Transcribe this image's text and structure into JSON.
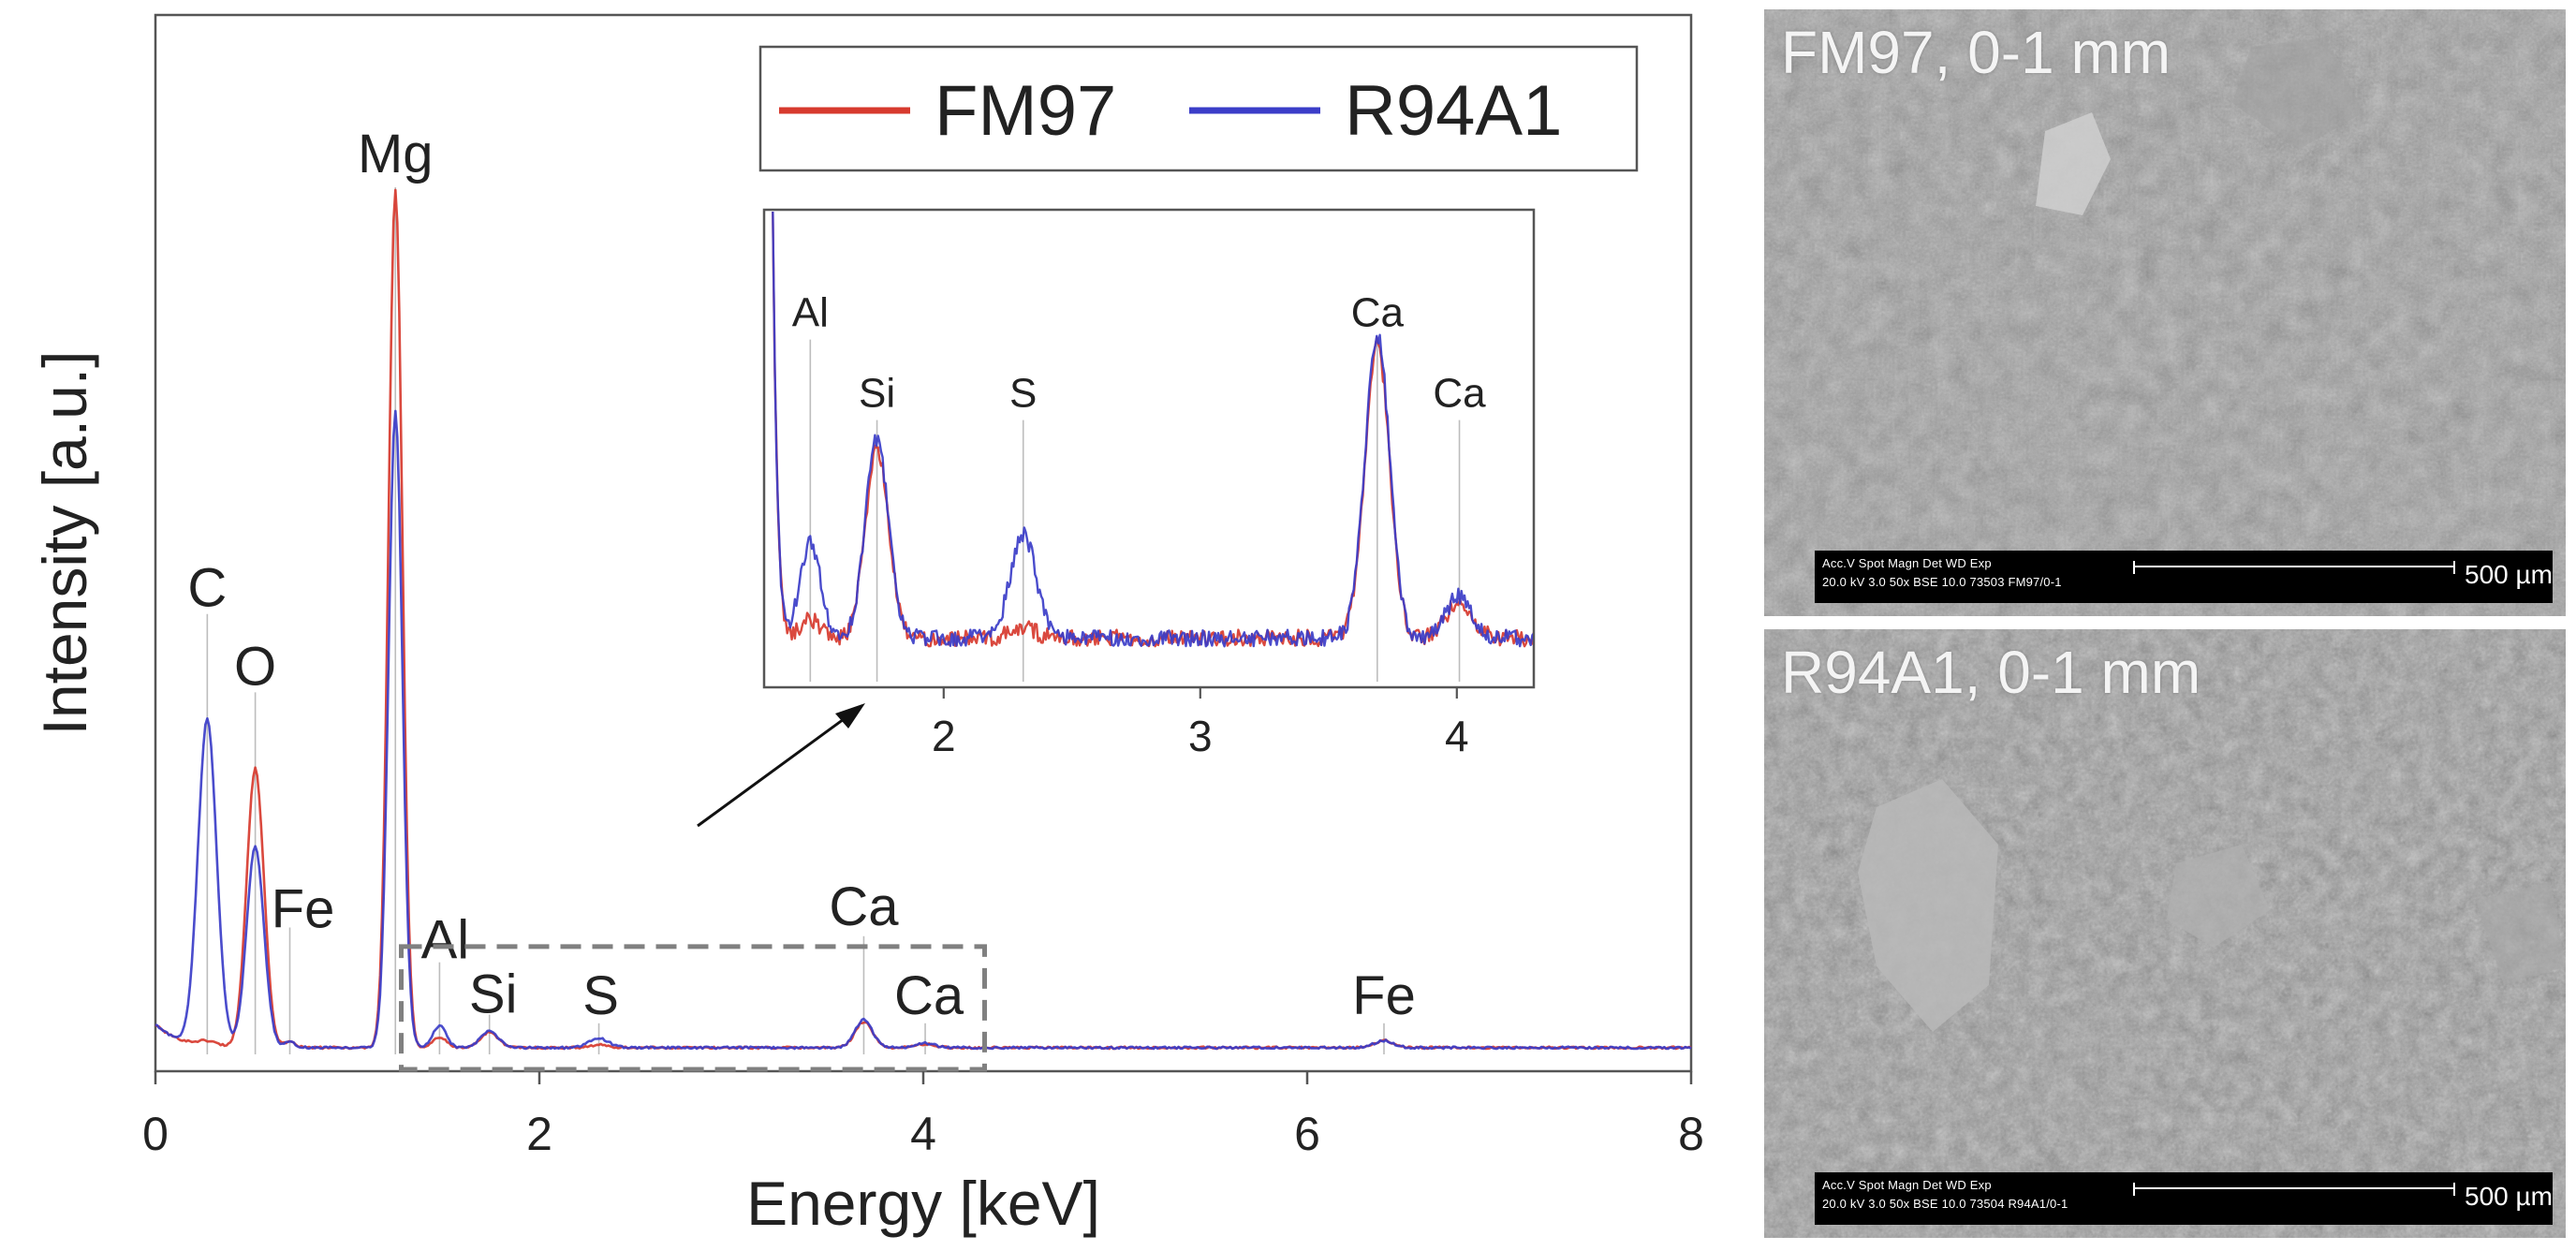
{
  "chart_data": {
    "type": "line",
    "xlabel": "Energy [keV]",
    "ylabel": "Intensity [a.u.]",
    "xlim": [
      0,
      8
    ],
    "ylim": [
      0,
      1
    ],
    "xticks": [
      0,
      2,
      4,
      6,
      8
    ],
    "grid": false,
    "legend": {
      "position": "top-right",
      "entries": [
        "FM97",
        "R94A1"
      ]
    },
    "series": [
      {
        "name": "FM97",
        "color": "#d73a2e",
        "peaks": [
          {
            "center": 0.27,
            "height": 0.005,
            "width": 0.05
          },
          {
            "center": 0.52,
            "height": 0.32,
            "width": 0.045
          },
          {
            "center": 0.7,
            "height": 0.006,
            "width": 0.03
          },
          {
            "center": 1.25,
            "height": 0.985,
            "width": 0.036
          },
          {
            "center": 1.48,
            "height": 0.012,
            "width": 0.035
          },
          {
            "center": 1.74,
            "height": 0.018,
            "width": 0.045
          },
          {
            "center": 2.31,
            "height": 0.003,
            "width": 0.05
          },
          {
            "center": 3.69,
            "height": 0.03,
            "width": 0.045
          },
          {
            "center": 4.01,
            "height": 0.004,
            "width": 0.05
          },
          {
            "center": 6.4,
            "height": 0.008,
            "width": 0.05
          }
        ]
      },
      {
        "name": "R94A1",
        "color": "#3b3dc8",
        "peaks": [
          {
            "center": 0.27,
            "height": 0.375,
            "width": 0.048
          },
          {
            "center": 0.52,
            "height": 0.23,
            "width": 0.045
          },
          {
            "center": 0.7,
            "height": 0.006,
            "width": 0.03
          },
          {
            "center": 1.25,
            "height": 0.73,
            "width": 0.036
          },
          {
            "center": 1.48,
            "height": 0.025,
            "width": 0.035
          },
          {
            "center": 1.74,
            "height": 0.019,
            "width": 0.045
          },
          {
            "center": 2.31,
            "height": 0.011,
            "width": 0.05
          },
          {
            "center": 3.69,
            "height": 0.032,
            "width": 0.045
          },
          {
            "center": 4.01,
            "height": 0.005,
            "width": 0.05
          },
          {
            "center": 6.4,
            "height": 0.008,
            "width": 0.05
          }
        ]
      }
    ],
    "element_labels": [
      {
        "text": "C",
        "energy": 0.27,
        "line_top": 0.51
      },
      {
        "text": "O",
        "energy": 0.52,
        "line_top": 0.42
      },
      {
        "text": "Fe",
        "energy": 0.7,
        "line_top": 0.15
      },
      {
        "text": "Mg",
        "energy": 1.25,
        "line_top": 1.0
      },
      {
        "text": "Al",
        "energy": 1.48,
        "line_top": 0.11
      },
      {
        "text": "Si",
        "energy": 1.74,
        "line_top": 0.05
      },
      {
        "text": "S",
        "energy": 2.31,
        "line_top": 0.04
      },
      {
        "text": "Ca",
        "energy": 3.69,
        "line_top": 0.14
      },
      {
        "text": "Ca",
        "energy": 4.01,
        "line_top": 0.04
      },
      {
        "text": "Fe",
        "energy": 6.4,
        "line_top": 0.04
      }
    ],
    "zoom_region": {
      "xlim": [
        1.3,
        4.3
      ],
      "ylim": [
        0,
        0.27
      ]
    },
    "inset": {
      "xlim": [
        1.3,
        4.3
      ],
      "xticks": [
        2,
        3,
        4
      ],
      "baseline": 0.1,
      "series": [
        {
          "name": "FM97",
          "color": "#d73a2e",
          "peaks": [
            {
              "center": 1.25,
              "height": 8.0,
              "width": 0.04
            },
            {
              "center": 1.48,
              "height": 0.04,
              "width": 0.04
            },
            {
              "center": 1.74,
              "height": 0.4,
              "width": 0.045
            },
            {
              "center": 2.31,
              "height": 0.02,
              "width": 0.05
            },
            {
              "center": 3.69,
              "height": 0.62,
              "width": 0.048
            },
            {
              "center": 4.01,
              "height": 0.08,
              "width": 0.05
            }
          ]
        },
        {
          "name": "R94A1",
          "color": "#3b3dc8",
          "peaks": [
            {
              "center": 1.25,
              "height": 8.0,
              "width": 0.04
            },
            {
              "center": 1.48,
              "height": 0.2,
              "width": 0.04
            },
            {
              "center": 1.74,
              "height": 0.42,
              "width": 0.045
            },
            {
              "center": 2.31,
              "height": 0.22,
              "width": 0.05
            },
            {
              "center": 3.69,
              "height": 0.64,
              "width": 0.048
            },
            {
              "center": 4.01,
              "height": 0.09,
              "width": 0.05
            }
          ]
        }
      ],
      "element_labels": [
        {
          "text": "Al",
          "energy": 1.48,
          "line_top": 0.73
        },
        {
          "text": "Si",
          "energy": 1.74,
          "line_top": 0.56
        },
        {
          "text": "S",
          "energy": 2.31,
          "line_top": 0.56
        },
        {
          "text": "Ca",
          "energy": 3.69,
          "line_top": 0.73
        },
        {
          "text": "Ca",
          "energy": 4.01,
          "line_top": 0.56
        }
      ]
    }
  },
  "sem_images": [
    {
      "title": "FM97, 0-1 mm",
      "meta_line1": "Acc.V  Spot Magn     Det  WD  Exp",
      "meta_line2": "20.0 kV 3.0   50x       BSE  10.0  73503  FM97/0-1",
      "scale_label": "500 µm"
    },
    {
      "title": "R94A1, 0-1 mm",
      "meta_line1": "Acc.V  Spot Magn     Det  WD  Exp",
      "meta_line2": "20.0 kV 3.0   50x       BSE  10.0  73504  R94A1/0-1",
      "scale_label": "500 µm"
    }
  ],
  "colors": {
    "axis": "#555555",
    "text": "#222222",
    "marker_line": "#bdbdbd",
    "zoom_box": "#808080"
  }
}
